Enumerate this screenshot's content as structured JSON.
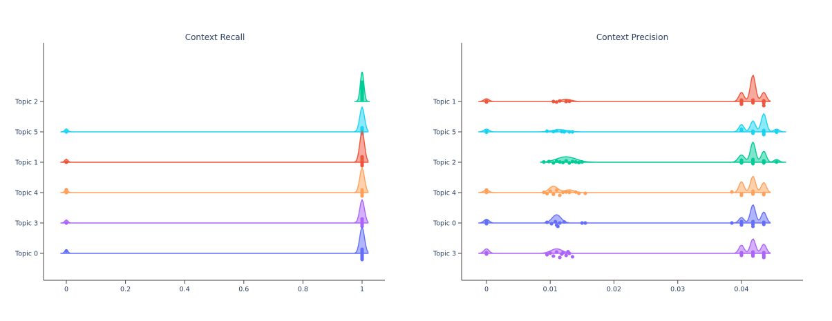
{
  "colors": {
    "Topic 0": "#636efa",
    "Topic 1": "#ef553b",
    "Topic 2": "#00cc96",
    "Topic 3": "#ab63fa",
    "Topic 4": "#ffa15a",
    "Topic 5": "#19d3f3"
  },
  "chart_data": [
    {
      "type": "violin",
      "title": "Context Recall",
      "xlabel": "",
      "ylabel": "",
      "xlim": [
        -0.08,
        1.08
      ],
      "xticks": [
        0,
        0.2,
        0.4,
        0.6,
        0.8,
        1
      ],
      "xtick_labels": [
        "0",
        "0.2",
        "0.4",
        "0.6",
        "0.8",
        "1"
      ],
      "categories": [
        "Topic 0",
        "Topic 3",
        "Topic 4",
        "Topic 1",
        "Topic 5",
        "Topic 2"
      ],
      "series": [
        {
          "name": "Topic 0",
          "min": -0.02,
          "max": 1.02,
          "peaks": [
            [
              0,
              0.12,
              0.005
            ],
            [
              1,
              0.85,
              0.008
            ]
          ],
          "points": [
            [
              0,
              0.18
            ],
            [
              1,
              -0.05
            ],
            [
              1,
              -0.15
            ],
            [
              1,
              -0.25
            ],
            [
              1,
              -0.35
            ],
            [
              1,
              -0.45
            ],
            [
              1,
              0.1
            ],
            [
              1,
              0.2
            ],
            [
              1,
              0.3
            ]
          ]
        },
        {
          "name": "Topic 3",
          "min": -0.02,
          "max": 1.02,
          "peaks": [
            [
              0,
              0.1,
              0.005
            ],
            [
              1,
              0.75,
              0.008
            ]
          ],
          "points": [
            [
              0,
              0
            ],
            [
              1,
              -0.05
            ],
            [
              1,
              -0.15
            ],
            [
              1,
              -0.25
            ],
            [
              1,
              0.1
            ],
            [
              1,
              0.2
            ],
            [
              1,
              0.3
            ]
          ]
        },
        {
          "name": "Topic 4",
          "min": -0.02,
          "max": 1.02,
          "peaks": [
            [
              0,
              0.1,
              0.005
            ],
            [
              1,
              0.8,
              0.008
            ]
          ],
          "points": [
            [
              0,
              0
            ],
            [
              0,
              0.22
            ],
            [
              1,
              -0.05
            ],
            [
              1,
              -0.15
            ],
            [
              1,
              -0.25
            ],
            [
              1,
              0.1
            ],
            [
              1,
              0.2
            ]
          ]
        },
        {
          "name": "Topic 1",
          "min": -0.02,
          "max": 1.02,
          "peaks": [
            [
              0,
              0.1,
              0.005
            ],
            [
              1,
              1.0,
              0.008
            ]
          ],
          "points": [
            [
              0,
              0
            ],
            [
              1,
              -0.05
            ],
            [
              1,
              -0.15
            ],
            [
              1,
              -0.25
            ],
            [
              1,
              0.1
            ],
            [
              1,
              0.2
            ],
            [
              1,
              0.3
            ],
            [
              1,
              0.4
            ]
          ]
        },
        {
          "name": "Topic 5",
          "min": -0.02,
          "max": 1.02,
          "peaks": [
            [
              0,
              0.1,
              0.005
            ],
            [
              1,
              0.8,
              0.008
            ]
          ],
          "points": [
            [
              0,
              0
            ],
            [
              1,
              -0.05
            ],
            [
              1,
              -0.15
            ],
            [
              1,
              0.1
            ],
            [
              1,
              0.2
            ],
            [
              1,
              0.3
            ]
          ]
        },
        {
          "name": "Topic 2",
          "min": 1.0,
          "max": 1.0,
          "peaks": [
            [
              1,
              0.95,
              0.006
            ]
          ],
          "points": [
            [
              1,
              0.1
            ],
            [
              1,
              0.2
            ],
            [
              1,
              0.3
            ],
            [
              1,
              0.4
            ],
            [
              1,
              0.5
            ],
            [
              1,
              0.6
            ],
            [
              1,
              0.7
            ],
            [
              1,
              0.8
            ],
            [
              1,
              0.9
            ],
            [
              1,
              1.0
            ],
            [
              1,
              1.1
            ],
            [
              1,
              1.2
            ],
            [
              1,
              1.3
            ],
            [
              1,
              1.4
            ]
          ]
        }
      ]
    },
    {
      "type": "violin",
      "title": "Context Precision",
      "xlabel": "",
      "ylabel": "",
      "xlim": [
        -0.0036,
        0.0495
      ],
      "xticks": [
        0,
        0.01,
        0.02,
        0.03,
        0.04
      ],
      "xtick_labels": [
        "0",
        "0.01",
        "0.02",
        "0.03",
        "0.04"
      ],
      "categories": [
        "Topic 3",
        "Topic 0",
        "Topic 4",
        "Topic 2",
        "Topic 5",
        "Topic 1"
      ],
      "series": [
        {
          "name": "Topic 3",
          "min": -0.0012,
          "max": 0.0445,
          "peaks": [
            [
              0,
              0.25,
              0.0004
            ],
            [
              0.011,
              0.25,
              0.0009
            ],
            [
              0.04,
              0.45,
              0.0004
            ],
            [
              0.0418,
              0.8,
              0.0004
            ],
            [
              0.0435,
              0.5,
              0.0004
            ]
          ],
          "points": [
            [
              0,
              0.05
            ],
            [
              0,
              -0.05
            ],
            [
              0.0095,
              -0.1
            ],
            [
              0.0105,
              -0.2
            ],
            [
              0.011,
              0.1
            ],
            [
              0.0115,
              -0.3
            ],
            [
              0.012,
              0.05
            ],
            [
              0.0125,
              -0.15
            ],
            [
              0.013,
              0.0
            ],
            [
              0.0135,
              -0.25
            ],
            [
              0.01,
              0.02
            ],
            [
              0.0118,
              -0.05
            ],
            [
              0.0128,
              0.12
            ],
            [
              0.04,
              -0.05
            ],
            [
              0.04,
              -0.15
            ],
            [
              0.04,
              0.05
            ],
            [
              0.0418,
              -0.1
            ],
            [
              0.0418,
              -0.2
            ],
            [
              0.0418,
              0.1
            ],
            [
              0.0435,
              -0.1
            ],
            [
              0.0435,
              -0.2
            ],
            [
              0.0435,
              -0.3
            ],
            [
              0.0435,
              0.05
            ]
          ]
        },
        {
          "name": "Topic 0",
          "min": -0.0012,
          "max": 0.0445,
          "peaks": [
            [
              0,
              0.2,
              0.0004
            ],
            [
              0.011,
              0.45,
              0.0007
            ],
            [
              0.04,
              0.3,
              0.0004
            ],
            [
              0.0418,
              1.0,
              0.0004
            ],
            [
              0.0435,
              0.6,
              0.0004
            ]
          ],
          "points": [
            [
              0,
              0.15
            ],
            [
              0,
              0.05
            ],
            [
              0,
              -0.05
            ],
            [
              0.0095,
              0.05
            ],
            [
              0.0102,
              -0.05
            ],
            [
              0.0108,
              0.1
            ],
            [
              0.011,
              -0.15
            ],
            [
              0.0112,
              -0.25
            ],
            [
              0.0115,
              0.0
            ],
            [
              0.0122,
              0.08
            ],
            [
              0.015,
              0.0
            ],
            [
              0.0155,
              0.0
            ],
            [
              0.0385,
              0.0
            ],
            [
              0.04,
              -0.05
            ],
            [
              0.04,
              -0.15
            ],
            [
              0.04,
              0.1
            ],
            [
              0.0418,
              -0.1
            ],
            [
              0.0418,
              -0.25
            ],
            [
              0.0418,
              0.1
            ],
            [
              0.0435,
              -0.1
            ],
            [
              0.0435,
              0.05
            ]
          ]
        },
        {
          "name": "Topic 4",
          "min": -0.0012,
          "max": 0.0445,
          "peaks": [
            [
              0,
              0.15,
              0.0004
            ],
            [
              0.0105,
              0.35,
              0.0007
            ],
            [
              0.013,
              0.15,
              0.0008
            ],
            [
              0.04,
              0.6,
              0.0004
            ],
            [
              0.0418,
              0.9,
              0.0004
            ],
            [
              0.0435,
              0.55,
              0.0004
            ]
          ],
          "points": [
            [
              0,
              0.2
            ],
            [
              0,
              0.1
            ],
            [
              0,
              0.02
            ],
            [
              0.009,
              0.02
            ],
            [
              0.0095,
              -0.08
            ],
            [
              0.01,
              0.1
            ],
            [
              0.0105,
              -0.12
            ],
            [
              0.011,
              0.18
            ],
            [
              0.0115,
              -0.2
            ],
            [
              0.012,
              0.02
            ],
            [
              0.0125,
              0.04
            ],
            [
              0.013,
              0.02
            ],
            [
              0.014,
              0.04
            ],
            [
              0.0145,
              -0.05
            ],
            [
              0.0155,
              -0.05
            ],
            [
              0.0385,
              0.05
            ],
            [
              0.04,
              -0.1
            ],
            [
              0.04,
              -0.2
            ],
            [
              0.0418,
              -0.1
            ],
            [
              0.0418,
              0.1
            ],
            [
              0.0435,
              -0.05
            ],
            [
              0.0435,
              -0.15
            ]
          ]
        },
        {
          "name": "Topic 2",
          "min": 0.0085,
          "max": 0.047,
          "peaks": [
            [
              0.0125,
              0.3,
              0.0015
            ],
            [
              0.04,
              0.4,
              0.0005
            ],
            [
              0.0418,
              1.1,
              0.0004
            ],
            [
              0.0435,
              0.6,
              0.0004
            ],
            [
              0.0455,
              0.15,
              0.0004
            ]
          ],
          "points": [
            [
              0.009,
              0.02
            ],
            [
              0.0098,
              0.05
            ],
            [
              0.0105,
              -0.05
            ],
            [
              0.011,
              0.08
            ],
            [
              0.0115,
              0.02
            ],
            [
              0.012,
              -0.02
            ],
            [
              0.0125,
              0.1
            ],
            [
              0.013,
              -0.05
            ],
            [
              0.0135,
              0.05
            ],
            [
              0.014,
              0.02
            ],
            [
              0.0145,
              -0.03
            ],
            [
              0.015,
              0.02
            ],
            [
              0.04,
              0.05
            ],
            [
              0.04,
              0.15
            ],
            [
              0.04,
              -0.05
            ],
            [
              0.0418,
              -0.1
            ],
            [
              0.0418,
              0.1
            ],
            [
              0.0418,
              0.2
            ],
            [
              0.0435,
              0.1
            ],
            [
              0.0435,
              -0.05
            ],
            [
              0.0455,
              0.02
            ]
          ]
        },
        {
          "name": "Topic 5",
          "min": -0.0012,
          "max": 0.047,
          "peaks": [
            [
              0,
              0.15,
              0.0004
            ],
            [
              0.0115,
              0.12,
              0.0012
            ],
            [
              0.04,
              0.4,
              0.0004
            ],
            [
              0.0418,
              0.6,
              0.0004
            ],
            [
              0.0435,
              1.0,
              0.0004
            ],
            [
              0.0455,
              0.15,
              0.0004
            ]
          ],
          "points": [
            [
              0,
              0.05
            ],
            [
              0,
              -0.03
            ],
            [
              0.0095,
              0.05
            ],
            [
              0.0105,
              0.02
            ],
            [
              0.011,
              0.08
            ],
            [
              0.0118,
              0.02
            ],
            [
              0.0122,
              0.0
            ],
            [
              0.013,
              0.0
            ],
            [
              0.0135,
              0.0
            ],
            [
              0.04,
              0.2
            ],
            [
              0.04,
              0.1
            ],
            [
              0.0418,
              -0.1
            ],
            [
              0.0418,
              0.05
            ],
            [
              0.0435,
              -0.1
            ],
            [
              0.0435,
              -0.2
            ],
            [
              0.0435,
              0.1
            ],
            [
              0.0455,
              0.05
            ],
            [
              0.0455,
              -0.02
            ]
          ]
        },
        {
          "name": "Topic 1",
          "min": -0.0012,
          "max": 0.0445,
          "peaks": [
            [
              0,
              0.15,
              0.0004
            ],
            [
              0.0125,
              0.12,
              0.0008
            ],
            [
              0.04,
              0.5,
              0.0004
            ],
            [
              0.0418,
              1.45,
              0.0004
            ],
            [
              0.0435,
              0.5,
              0.0004
            ]
          ],
          "points": [
            [
              0,
              0.02
            ],
            [
              0,
              -0.04
            ],
            [
              0.0105,
              0.0
            ],
            [
              0.011,
              -0.04
            ],
            [
              0.0115,
              0.04
            ],
            [
              0.0125,
              0.0
            ],
            [
              0.013,
              0.02
            ],
            [
              0.04,
              0.1
            ],
            [
              0.04,
              0.0
            ],
            [
              0.04,
              -0.1
            ],
            [
              0.04,
              -0.2
            ],
            [
              0.0418,
              -0.1
            ],
            [
              0.0418,
              0.1
            ],
            [
              0.0435,
              -0.1
            ],
            [
              0.0435,
              0.05
            ],
            [
              0.0435,
              -0.3
            ]
          ]
        }
      ]
    }
  ]
}
